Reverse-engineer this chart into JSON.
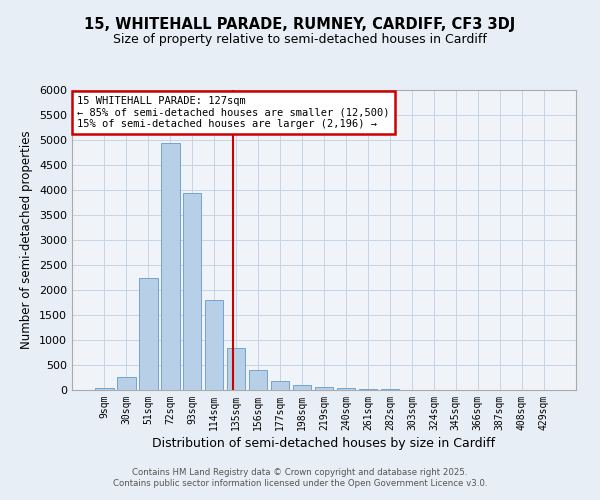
{
  "title_line1": "15, WHITEHALL PARADE, RUMNEY, CARDIFF, CF3 3DJ",
  "title_line2": "Size of property relative to semi-detached houses in Cardiff",
  "xlabel": "Distribution of semi-detached houses by size in Cardiff",
  "ylabel": "Number of semi-detached properties",
  "bar_labels": [
    "9sqm",
    "30sqm",
    "51sqm",
    "72sqm",
    "93sqm",
    "114sqm",
    "135sqm",
    "156sqm",
    "177sqm",
    "198sqm",
    "219sqm",
    "240sqm",
    "261sqm",
    "282sqm",
    "303sqm",
    "324sqm",
    "345sqm",
    "366sqm",
    "387sqm",
    "408sqm",
    "429sqm"
  ],
  "bar_values": [
    50,
    270,
    2250,
    4950,
    3950,
    1800,
    850,
    410,
    175,
    105,
    65,
    45,
    30,
    15,
    10,
    5,
    5,
    3,
    2,
    1,
    0
  ],
  "bar_color": "#b8cfe8",
  "bar_edge_color": "#6699cc",
  "vline_x": 5.85,
  "vline_color": "#cc0000",
  "ylim": [
    0,
    6000
  ],
  "yticks": [
    0,
    500,
    1000,
    1500,
    2000,
    2500,
    3000,
    3500,
    4000,
    4500,
    5000,
    5500,
    6000
  ],
  "annotation_title": "15 WHITEHALL PARADE: 127sqm",
  "annotation_line1": "← 85% of semi-detached houses are smaller (12,500)",
  "annotation_line2": "15% of semi-detached houses are larger (2,196) →",
  "annotation_box_color": "#cc0000",
  "footer_line1": "Contains HM Land Registry data © Crown copyright and database right 2025.",
  "footer_line2": "Contains public sector information licensed under the Open Government Licence v3.0.",
  "bg_color": "#e8eef5",
  "plot_bg_color": "#f0f4f8",
  "grid_color": "#c5d5e5"
}
